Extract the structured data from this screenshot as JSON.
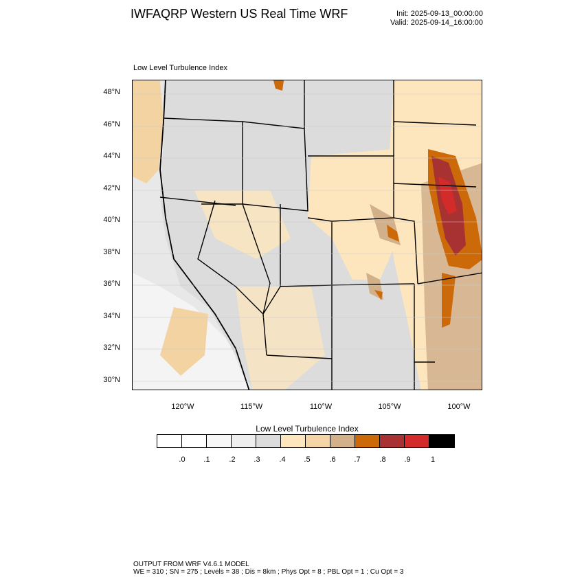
{
  "title": "IWFAQRP Western US Real Time WRF",
  "init_label": "Init: 2025-09-13_00:00:00",
  "valid_label": "Valid: 2025-09-14_16:00:00",
  "map": {
    "subtitle": "Low Level Turbulence Index",
    "lat_labels": [
      "48°N",
      "46°N",
      "44°N",
      "42°N",
      "40°N",
      "38°N",
      "36°N",
      "34°N",
      "32°N",
      "30°N"
    ],
    "lon_labels": [
      "120°W",
      "115°W",
      "110°W",
      "105°W",
      "100°W"
    ]
  },
  "colorbar": {
    "title": "Low Level Turbulence Index",
    "labels": [
      ".0",
      ".1",
      ".2",
      ".3",
      ".4",
      ".5",
      ".6",
      ".7",
      ".8",
      ".9",
      "1"
    ],
    "colors": [
      "#ffffff",
      "#f7f7f7",
      "#eeeeee",
      "#dcdcdc",
      "#fde6bd",
      "#f5d5a6",
      "#d2b08a",
      "#cc6a0a",
      "#a83232",
      "#d32a2a",
      "#000000"
    ]
  },
  "footer": {
    "line1": "OUTPUT FROM WRF V4.6.1 MODEL",
    "line2": "WE = 310 ; SN = 275 ; Levels = 38 ; Dis = 8km ; Phys Opt = 8 ; PBL Opt = 1 ; Cu Opt = 3"
  }
}
